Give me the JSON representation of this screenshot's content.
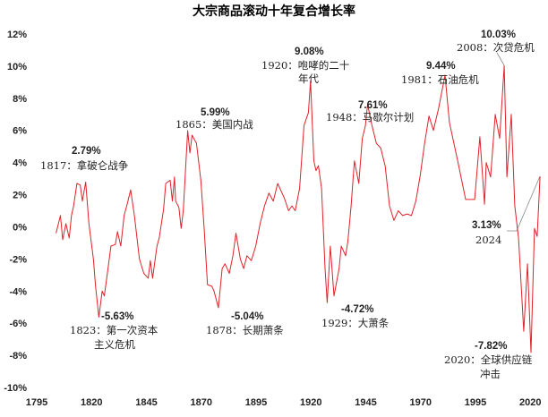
{
  "chart_data": {
    "type": "line",
    "title": "大宗商品滚动十年复合增长率",
    "xlabel": "",
    "ylabel": "",
    "xlim": [
      1795,
      2027
    ],
    "ylim": [
      -10,
      12
    ],
    "grid": false,
    "x_ticks": [
      "1795",
      "1820",
      "1845",
      "1870",
      "1895",
      "1920",
      "1945",
      "1970",
      "1995",
      "2020"
    ],
    "y_ticks": [
      "12%",
      "10%",
      "8%",
      "6%",
      "4%",
      "2%",
      "0%",
      "-2%",
      "-4%",
      "-6%",
      "-8%",
      "-10%"
    ],
    "series": [
      {
        "name": "大宗商品滚动十年复合增长率",
        "color": "#e0212b",
        "x": [
          1803,
          1805,
          1806,
          1807.5,
          1809,
          1810,
          1811,
          1812.5,
          1814,
          1815,
          1816.5,
          1818,
          1820,
          1821,
          1822.5,
          1824,
          1825,
          1826.4,
          1828,
          1830,
          1831,
          1832.5,
          1834,
          1835.4,
          1837,
          1838.7,
          1841,
          1843,
          1845,
          1846,
          1847,
          1849,
          1850,
          1852,
          1853,
          1855,
          1856,
          1857,
          1857.5,
          1859,
          1860,
          1861,
          1863,
          1864,
          1865,
          1867,
          1869,
          1870.5,
          1872,
          1874,
          1875,
          1877,
          1878.7,
          1880,
          1882,
          1883.6,
          1885,
          1887,
          1888.5,
          1890,
          1892,
          1894,
          1896,
          1898,
          1900,
          1902,
          1904,
          1906,
          1907,
          1909,
          1910.5,
          1912,
          1914,
          1916,
          1918,
          1919,
          1920.5,
          1921.5,
          1922.6,
          1924,
          1925.6,
          1926.6,
          1928,
          1929.7,
          1932,
          1933,
          1935,
          1936,
          1937.5,
          1939,
          1941,
          1942.6,
          1944,
          1945,
          1947,
          1949,
          1951,
          1953,
          1955,
          1957,
          1959,
          1961,
          1963,
          1965,
          1967,
          1969,
          1971,
          1973,
          1975,
          1977.4,
          1980.3,
          1982.3,
          1986.4,
          1989.7,
          1993.8,
          1996.2,
          1998.3,
          1999.1,
          2001.1,
          2003.2,
          2005.2,
          2007.3,
          2008.5,
          2010.5,
          2012.1,
          2013.8,
          2016.2,
          2017.9,
          2019.5,
          2021.1,
          2022.3,
          2023.6
        ],
        "values": [
          -0.4,
          0.7,
          -0.8,
          0.2,
          -0.7,
          0.7,
          1.3,
          2.7,
          2.6,
          1.6,
          2.79,
          0.2,
          -2.0,
          -3.7,
          -5.63,
          -4.0,
          -4.3,
          -2.9,
          -1.2,
          -1.1,
          -0.3,
          -1.2,
          0.7,
          1.4,
          2.3,
          0.7,
          -2.0,
          -2.9,
          -3.2,
          -2.1,
          -3.2,
          -1.2,
          -0.7,
          1.1,
          2.7,
          2.9,
          1.6,
          3.1,
          1.6,
          1.2,
          -0.1,
          1.0,
          5.99,
          4.6,
          5.7,
          5.2,
          2.9,
          -0.1,
          -3.6,
          -3.7,
          -4.0,
          -5.04,
          -2.6,
          -2.3,
          -2.9,
          -1.8,
          -0.4,
          -2.0,
          -2.6,
          -1.8,
          -2.1,
          -1.2,
          0.2,
          1.3,
          2.1,
          1.6,
          2.7,
          2.1,
          1.8,
          1.0,
          1.3,
          1.0,
          2.4,
          6.3,
          7.1,
          9.08,
          4.1,
          3.5,
          3.8,
          2.4,
          -2.6,
          -4.72,
          -1.2,
          -4.3,
          -2.6,
          -1.2,
          -1.8,
          -0.9,
          1.3,
          4.1,
          2.7,
          5.5,
          6.3,
          7.61,
          6.3,
          5.2,
          4.9,
          3.8,
          1.3,
          0.4,
          1.0,
          0.7,
          0.8,
          0.7,
          1.6,
          3.2,
          5.2,
          6.9,
          6.0,
          7.4,
          9.44,
          6.5,
          3.9,
          1.7,
          1.7,
          5.6,
          1.4,
          4.0,
          3.1,
          7.0,
          5.5,
          10.03,
          3.1,
          7.0,
          1.3,
          -0.7,
          -6.5,
          -2.3,
          -7.82,
          -0.1,
          -0.6,
          3.13
        ]
      }
    ],
    "annotations": [
      {
        "value": "2.79%",
        "label": "1817：拿破仑战争",
        "line2": ""
      },
      {
        "value": "5.99%",
        "label": "1865：美国内战",
        "line2": ""
      },
      {
        "value": "9.08%",
        "label": "1920：咆哮的二十",
        "line2": "年代"
      },
      {
        "value": "7.61%",
        "label": "1948：马歇尔计划",
        "line2": ""
      },
      {
        "value": "9.44%",
        "label": "1981：石油危机",
        "line2": ""
      },
      {
        "value": "10.03%",
        "label": "2008：次贷危机",
        "line2": ""
      },
      {
        "value": "-5.63%",
        "label": "1823：第一次资本",
        "line2": "主义危机"
      },
      {
        "value": "-5.04%",
        "label": "1878：长期萧条",
        "line2": ""
      },
      {
        "value": "-4.72%",
        "label": "1929：大萧条",
        "line2": ""
      },
      {
        "value": "3.13%",
        "label": "2024",
        "line2": ""
      },
      {
        "value": "-7.82%",
        "label": "2020：全球供应链",
        "line2": "冲击"
      }
    ]
  }
}
